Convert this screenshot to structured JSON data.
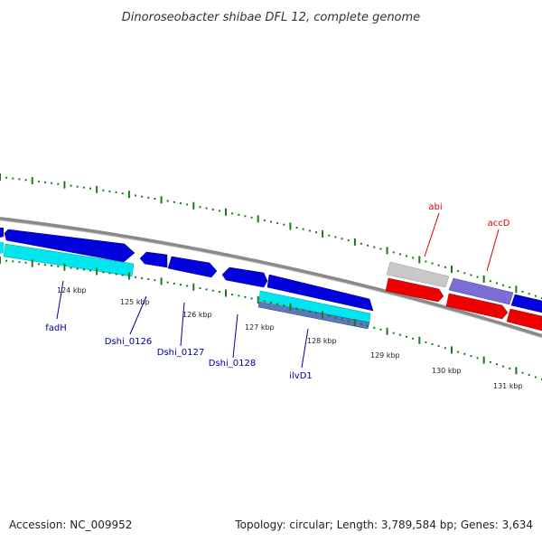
{
  "title": "Dinoroseobacter shibae DFL 12, complete genome",
  "footer": {
    "accession": "Accession: NC_009952",
    "summary": "Topology: circular; Length: 3,789,584 bp; Genes: 3,634"
  },
  "colors": {
    "backbone": "#888888",
    "tick": "#1a7a1a",
    "forward_gene": "#0000dd",
    "forward_label": "#000099",
    "reverse_gene": "#ee0000",
    "reverse_label": "#dd0000",
    "cyan_feature": "#00e5ee",
    "slate_feature": "#5b78b8",
    "grey_feature": "#c8c8c8",
    "lavender_feature": "#7b6fd6"
  },
  "scale_labels": [
    "124 kbp",
    "125 kbp",
    "126 kbp",
    "127 kbp",
    "128 kbp",
    "129 kbp",
    "130 kbp",
    "131 kbp"
  ],
  "gene_labels": {
    "fadH": "fadH",
    "dshi_0126": "Dshi_0126",
    "dshi_0127": "Dshi_0127",
    "dshi_0128": "Dshi_0128",
    "ilvD1": "ilvD1",
    "abi": "abi",
    "accD": "accD"
  }
}
